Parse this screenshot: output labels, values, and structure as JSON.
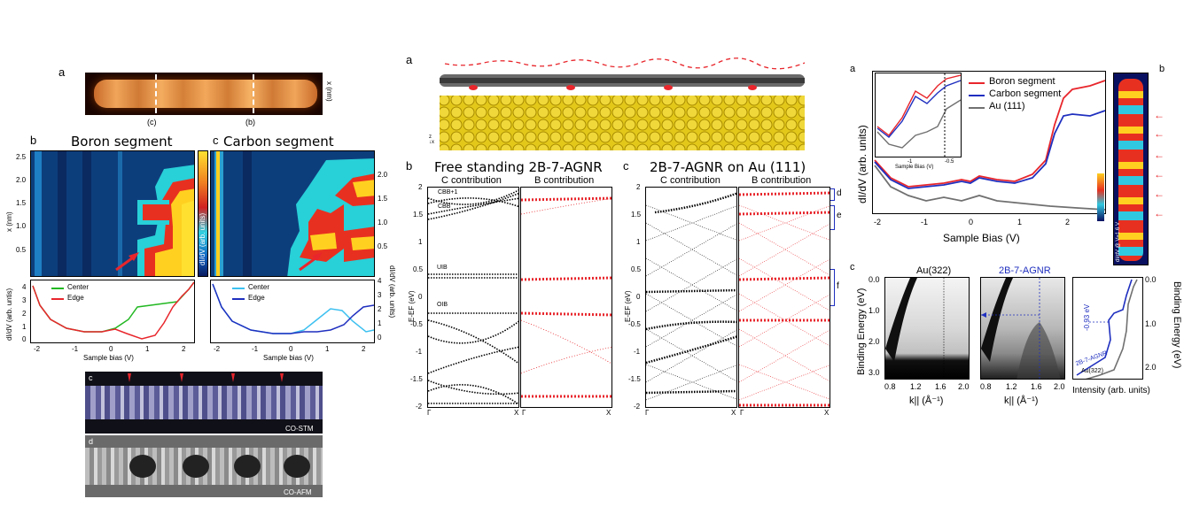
{
  "fig1": {
    "label_a": "a",
    "a_tick_c": "(c)",
    "a_tick_b": "(b)",
    "a_axis": "x (nm)",
    "label_b": "b",
    "label_c": "c",
    "title_b": "Boron segment",
    "title_c": "Carbon segment",
    "map_yaxis": "x (nm)",
    "map_yticks": [
      "2.5",
      "2.0",
      "1.5",
      "1.0",
      "0.5"
    ],
    "map_yticks_right": [
      "2.0",
      "1.5",
      "1.0",
      "0.5"
    ],
    "colorbar_label": "dI/dV (arb. units)",
    "spec_ylabel_left": "dI/dV (arb. untis)",
    "spec_ylabel_right": "dI/dV (arb. units)",
    "spec_yticks": [
      "4",
      "3",
      "2",
      "1",
      "0"
    ],
    "spec_xticks": [
      "-2",
      "-1",
      "0",
      "1",
      "2"
    ],
    "spec_xlabel": "Sample bias (V)",
    "legend_b": [
      "Center",
      "Edge"
    ],
    "legend_c": [
      "Center",
      "Edge"
    ],
    "label_c2": "c",
    "label_d": "d",
    "co_stm": "CO-STM",
    "co_afm": "CO-AFM"
  },
  "fig2": {
    "label_a": "a",
    "label_b": "b",
    "label_c": "c",
    "title_b": "Free standing 2B-7-AGNR",
    "title_c": "2B-7-AGNR on Au (111)",
    "c_contrib": "C contribution",
    "b_contrib": "B contribution",
    "ylabel": "E-EF (eV)",
    "yticks": [
      "2",
      "1.5",
      "1",
      "0.5",
      "0",
      "-0.5",
      "-1",
      "-1.5",
      "-2"
    ],
    "x_gamma": "Γ",
    "x_x": "X",
    "band_labels": [
      "CBB+1",
      "CBB",
      "UIB",
      "OIB"
    ],
    "brackets": [
      "d",
      "e",
      "f"
    ]
  },
  "fig3": {
    "label_a": "a",
    "label_b": "b",
    "label_c": "c",
    "legend": [
      "Boron segment",
      "Carbon segment",
      "Au (111)"
    ],
    "ylabel": "dI/dV (arb. units)",
    "xlabel": "Sample Bias (V)",
    "xticks": [
      "-2",
      "-1",
      "0",
      "1",
      "2"
    ],
    "inset_xlabel": "Sample Bias (V)",
    "inset_xticks": [
      "-1",
      "-0.5"
    ],
    "map_label": "dI/dV @ V=1.6 V",
    "arpes_title1": "Au(322)",
    "arpes_title2": "2B-7-AGNR",
    "be_label": "Binding Energy (eV)",
    "be_ticks": [
      "0.0",
      "1.0",
      "2.0",
      "3.0"
    ],
    "k_ticks": [
      "0.8",
      "1.2",
      "1.6",
      "2.0"
    ],
    "k_label": "k|| (Å⁻¹)",
    "edc_ann": "-0.93 eV",
    "edc_label1": "2B-7-AGNR",
    "edc_label2": "Au(322)",
    "intensity_label": "Intensity (arb. units)",
    "edc_ticks": [
      "0.0",
      "1.0",
      "2.0"
    ]
  },
  "colors": {
    "red": "#e8262c",
    "blue": "#1f2fbf",
    "green": "#22b822",
    "lightblue": "#3cc0f0",
    "gray": "#707070",
    "gold": "#e3c81a"
  }
}
